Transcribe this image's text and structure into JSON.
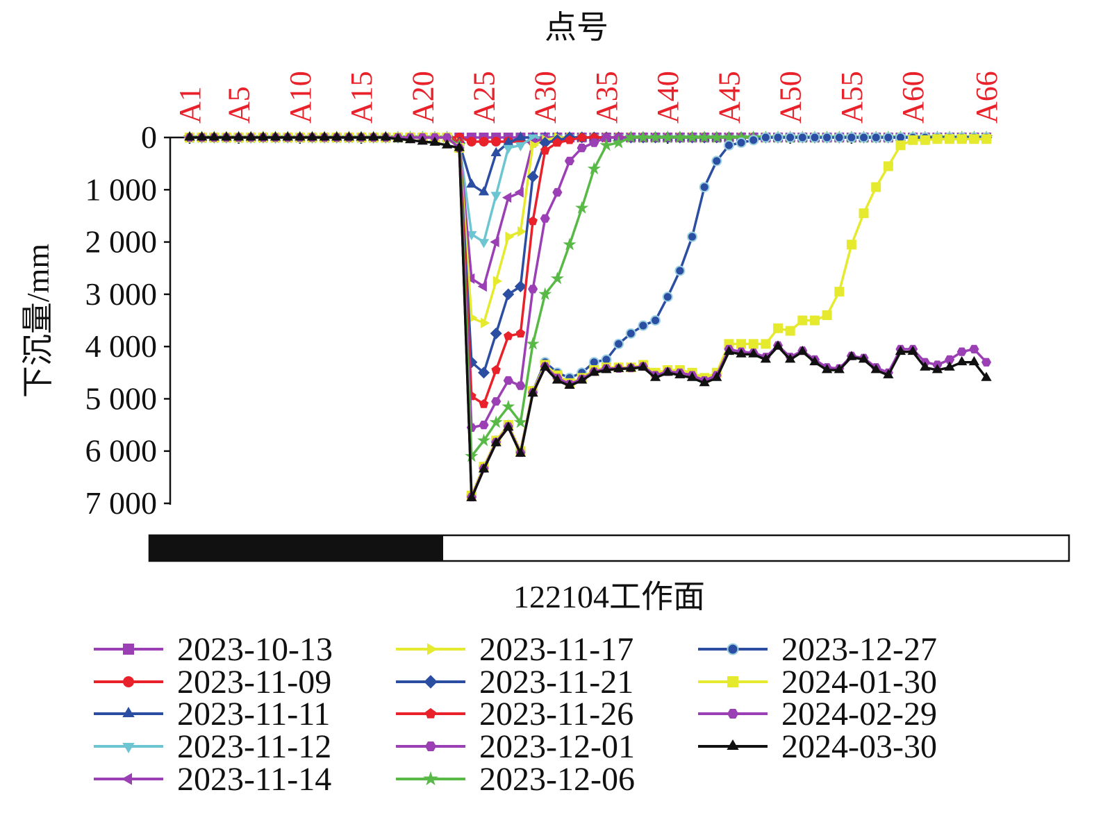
{
  "chart_data": {
    "type": "line",
    "x_label": "点号",
    "y_label": "下沉量/mm",
    "annotation": "122104工作面",
    "categories": [
      "A1",
      null,
      null,
      null,
      "A5",
      null,
      null,
      null,
      null,
      "A10",
      null,
      null,
      null,
      null,
      "A15",
      null,
      null,
      null,
      null,
      "A20",
      null,
      null,
      null,
      null,
      "A25",
      null,
      null,
      null,
      null,
      "A30",
      null,
      null,
      null,
      null,
      "A35",
      null,
      null,
      null,
      null,
      "A40",
      null,
      null,
      null,
      null,
      "A45",
      null,
      null,
      null,
      null,
      "A50",
      null,
      null,
      null,
      null,
      "A55",
      null,
      null,
      null,
      null,
      "A60",
      null,
      null,
      null,
      null,
      null,
      "A66"
    ],
    "ylim": [
      0,
      7000
    ],
    "y_reversed": true,
    "yticks": [
      0,
      {
        "value": 1000,
        "label": "1 000"
      },
      {
        "value": 2000,
        "label": "2 000"
      },
      {
        "value": 3000,
        "label": "3 000"
      },
      {
        "value": 4000,
        "label": "4 000"
      },
      {
        "value": 5000,
        "label": "5 000"
      },
      {
        "value": 6000,
        "label": "6 000"
      },
      {
        "value": 7000,
        "label": "7 000"
      }
    ],
    "tick_label_color": "#e8212a",
    "series": [
      {
        "name": "2023-10-13",
        "color": "#9b3fb5",
        "marker": "square",
        "values": [
          0,
          0,
          0,
          0,
          0,
          0,
          0,
          0,
          0,
          0,
          0,
          0,
          0,
          0,
          0,
          0,
          0,
          0,
          0,
          0,
          0,
          0,
          0,
          0,
          0,
          0,
          0,
          0,
          0,
          0,
          0,
          0,
          0,
          0,
          0,
          0,
          0,
          0,
          0,
          0,
          0,
          0,
          0,
          0,
          0,
          0,
          0,
          0,
          0,
          0,
          0,
          0,
          0,
          0,
          0,
          0,
          0,
          0,
          0,
          0,
          0,
          0,
          0,
          0,
          0,
          0
        ]
      },
      {
        "name": "2023-11-09",
        "color": "#e8212a",
        "marker": "circle",
        "values": [
          0,
          0,
          0,
          0,
          0,
          0,
          0,
          0,
          0,
          0,
          0,
          0,
          0,
          0,
          0,
          0,
          0,
          0,
          0,
          0,
          0,
          0,
          0,
          80,
          80,
          80,
          80,
          80,
          80,
          80,
          80,
          0,
          0,
          0,
          0,
          0,
          0,
          0,
          0,
          0,
          0,
          0,
          0,
          0,
          0,
          0,
          0,
          0,
          0,
          0,
          0,
          0,
          0,
          0,
          0,
          0,
          0,
          0,
          0,
          0,
          0,
          0,
          0,
          0,
          0,
          0
        ]
      },
      {
        "name": "2023-11-11",
        "color": "#2b4ea2",
        "marker": "triangle-up",
        "values": [
          0,
          0,
          0,
          0,
          0,
          0,
          0,
          0,
          0,
          0,
          0,
          0,
          0,
          0,
          0,
          0,
          0,
          0,
          0,
          0,
          0,
          0,
          100,
          900,
          1050,
          300,
          100,
          0,
          0,
          0,
          0,
          0,
          0,
          0,
          0,
          0,
          0,
          0,
          0,
          0,
          0,
          0,
          0,
          0,
          0,
          0,
          0,
          0,
          0,
          0,
          0,
          0,
          0,
          0,
          0,
          0,
          0,
          0,
          0,
          0,
          0,
          0,
          0,
          0,
          0,
          0
        ]
      },
      {
        "name": "2023-11-12",
        "color": "#6cc5d0",
        "marker": "triangle-down",
        "values": [
          0,
          0,
          0,
          0,
          0,
          0,
          0,
          0,
          0,
          0,
          0,
          0,
          0,
          0,
          0,
          0,
          0,
          0,
          0,
          0,
          0,
          0,
          100,
          1850,
          2000,
          1100,
          200,
          150,
          0,
          0,
          0,
          0,
          0,
          0,
          0,
          0,
          0,
          0,
          0,
          0,
          0,
          0,
          0,
          0,
          0,
          0,
          0,
          0,
          0,
          0,
          0,
          0,
          0,
          0,
          0,
          0,
          0,
          0,
          0,
          0,
          0,
          0,
          0,
          0,
          0,
          0
        ]
      },
      {
        "name": "2023-11-14",
        "color": "#9b3fb5",
        "marker": "triangle-left",
        "values": [
          0,
          0,
          0,
          0,
          0,
          0,
          0,
          0,
          0,
          0,
          0,
          0,
          0,
          0,
          0,
          0,
          0,
          0,
          0,
          0,
          0,
          0,
          100,
          2700,
          2850,
          2000,
          1150,
          1050,
          100,
          0,
          0,
          0,
          0,
          0,
          0,
          0,
          0,
          0,
          0,
          0,
          0,
          0,
          0,
          0,
          0,
          0,
          0,
          0,
          0,
          0,
          0,
          0,
          0,
          0,
          0,
          0,
          0,
          0,
          0,
          0,
          0,
          0,
          0,
          0,
          0,
          0
        ]
      },
      {
        "name": "2023-11-17",
        "color": "#e6ea2f",
        "marker": "triangle-right",
        "values": [
          0,
          0,
          0,
          0,
          0,
          0,
          0,
          0,
          0,
          0,
          0,
          0,
          0,
          0,
          0,
          0,
          0,
          0,
          0,
          0,
          0,
          0,
          100,
          3450,
          3550,
          2750,
          1900,
          1800,
          150,
          50,
          0,
          0,
          0,
          0,
          0,
          0,
          0,
          0,
          0,
          0,
          0,
          0,
          0,
          0,
          0,
          0,
          0,
          0,
          0,
          0,
          0,
          0,
          0,
          0,
          0,
          0,
          0,
          0,
          0,
          0,
          0,
          0,
          0,
          0,
          0,
          0
        ]
      },
      {
        "name": "2023-11-21",
        "color": "#2b4ea2",
        "marker": "diamond",
        "values": [
          0,
          0,
          0,
          0,
          0,
          0,
          0,
          0,
          0,
          0,
          0,
          0,
          0,
          0,
          0,
          0,
          0,
          0,
          0,
          0,
          0,
          0,
          100,
          4300,
          4500,
          3750,
          3000,
          2850,
          750,
          100,
          50,
          0,
          0,
          0,
          0,
          0,
          0,
          0,
          0,
          0,
          0,
          0,
          0,
          0,
          0,
          0,
          0,
          0,
          0,
          0,
          0,
          0,
          0,
          0,
          0,
          0,
          0,
          0,
          0,
          0,
          0,
          0,
          0,
          0,
          0,
          0
        ]
      },
      {
        "name": "2023-11-26",
        "color": "#e8212a",
        "marker": "pentagon",
        "values": [
          0,
          0,
          0,
          0,
          0,
          0,
          0,
          0,
          0,
          0,
          0,
          0,
          0,
          0,
          0,
          0,
          0,
          0,
          0,
          0,
          0,
          0,
          100,
          4950,
          5100,
          4450,
          3800,
          3750,
          1600,
          250,
          100,
          50,
          0,
          0,
          0,
          0,
          0,
          0,
          0,
          0,
          0,
          0,
          0,
          0,
          0,
          0,
          0,
          0,
          0,
          0,
          0,
          0,
          0,
          0,
          0,
          0,
          0,
          0,
          0,
          0,
          0,
          0,
          0,
          0,
          0,
          0
        ]
      },
      {
        "name": "2023-12-01",
        "color": "#9b3fb5",
        "marker": "hexagon",
        "values": [
          0,
          0,
          0,
          0,
          0,
          0,
          0,
          0,
          0,
          0,
          0,
          0,
          0,
          0,
          0,
          0,
          0,
          0,
          0,
          0,
          0,
          0,
          150,
          5550,
          5500,
          5050,
          4650,
          4750,
          2900,
          1550,
          1050,
          450,
          200,
          100,
          0,
          0,
          0,
          0,
          0,
          0,
          0,
          0,
          0,
          0,
          0,
          0,
          0,
          0,
          0,
          0,
          0,
          0,
          0,
          0,
          0,
          0,
          0,
          0,
          0,
          0,
          0,
          0,
          0,
          0,
          0,
          0
        ]
      },
      {
        "name": "2023-12-06",
        "color": "#58b947",
        "marker": "star",
        "values": [
          0,
          0,
          0,
          0,
          0,
          0,
          0,
          0,
          0,
          0,
          0,
          0,
          0,
          0,
          0,
          0,
          0,
          0,
          0,
          0,
          0,
          0,
          150,
          6100,
          5800,
          5450,
          5150,
          5450,
          3950,
          3000,
          2700,
          2050,
          1350,
          600,
          150,
          100,
          0,
          0,
          0,
          0,
          0,
          0,
          0,
          0,
          0,
          0,
          0,
          0,
          0,
          0,
          0,
          0,
          0,
          0,
          0,
          0,
          0,
          0,
          0,
          0,
          0,
          0,
          0,
          0,
          0,
          0
        ]
      },
      {
        "name": "2023-12-27",
        "color": "#2b4ea2",
        "marker": "circle-dot",
        "values": [
          0,
          0,
          0,
          0,
          0,
          0,
          0,
          0,
          0,
          0,
          0,
          0,
          0,
          0,
          0,
          0,
          0,
          0,
          0,
          0,
          0,
          0,
          200,
          6850,
          6300,
          5800,
          5500,
          6000,
          4850,
          4300,
          4500,
          4600,
          4500,
          4300,
          4250,
          3950,
          3750,
          3600,
          3500,
          3050,
          2550,
          1900,
          950,
          450,
          150,
          100,
          50,
          0,
          0,
          0,
          0,
          0,
          0,
          0,
          0,
          0,
          0,
          0,
          0,
          0,
          0,
          0,
          0,
          0,
          0,
          0
        ]
      },
      {
        "name": "2024-01-30",
        "color": "#e6ea2f",
        "marker": "square",
        "values": [
          0,
          0,
          0,
          0,
          0,
          0,
          0,
          0,
          0,
          0,
          0,
          0,
          0,
          0,
          0,
          0,
          0,
          0,
          0,
          0,
          0,
          0,
          200,
          6850,
          6300,
          5800,
          5500,
          6000,
          4850,
          4350,
          4550,
          4700,
          4600,
          4450,
          4400,
          4400,
          4400,
          4350,
          4500,
          4450,
          4450,
          4500,
          4600,
          4500,
          3950,
          3950,
          3950,
          3950,
          3650,
          3700,
          3500,
          3500,
          3400,
          2950,
          2050,
          1450,
          950,
          550,
          150,
          50,
          50,
          30,
          30,
          30,
          30,
          30
        ]
      },
      {
        "name": "2024-02-29",
        "color": "#9b3fb5",
        "marker": "hexagon",
        "values": [
          0,
          0,
          0,
          0,
          0,
          0,
          0,
          0,
          0,
          0,
          0,
          0,
          0,
          0,
          0,
          0,
          0,
          0,
          0,
          0,
          0,
          0,
          200,
          6880,
          6330,
          5830,
          5530,
          6030,
          4880,
          4380,
          4600,
          4720,
          4620,
          4480,
          4420,
          4420,
          4410,
          4380,
          4550,
          4480,
          4500,
          4550,
          4650,
          4550,
          4050,
          4100,
          4120,
          4200,
          3980,
          4200,
          4080,
          4250,
          4400,
          4420,
          4180,
          4220,
          4400,
          4500,
          4050,
          4050,
          4300,
          4350,
          4250,
          4100,
          4050,
          4300
        ]
      },
      {
        "name": "2024-03-30",
        "color": "#111111",
        "marker": "triangle-up",
        "values": [
          0,
          0,
          0,
          0,
          0,
          0,
          0,
          0,
          0,
          0,
          0,
          0,
          0,
          0,
          0,
          0,
          0,
          30,
          50,
          80,
          100,
          150,
          200,
          6900,
          6350,
          5850,
          5550,
          6050,
          4900,
          4400,
          4650,
          4750,
          4650,
          4500,
          4450,
          4430,
          4420,
          4400,
          4600,
          4500,
          4550,
          4600,
          4700,
          4600,
          4100,
          4150,
          4150,
          4250,
          4000,
          4250,
          4100,
          4300,
          4450,
          4450,
          4200,
          4250,
          4450,
          4550,
          4100,
          4100,
          4400,
          4450,
          4400,
          4300,
          4300,
          4600
        ]
      }
    ]
  }
}
